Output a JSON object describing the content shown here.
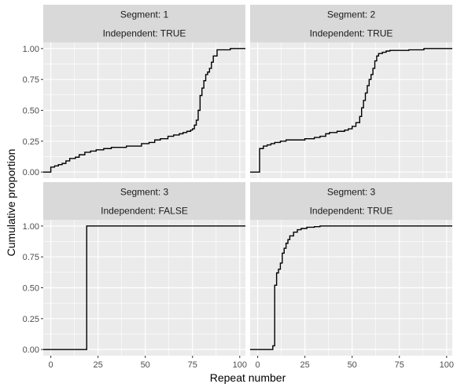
{
  "chart_data": {
    "type": "line",
    "subtype": "step-ecdf-faceted",
    "xlabel": "Repeat number",
    "ylabel": "Cumulative proportion",
    "xlim": [
      -4,
      103
    ],
    "ylim": [
      -0.05,
      1.05
    ],
    "x_ticks": [
      0,
      25,
      50,
      75,
      100
    ],
    "y_ticks": [
      0.0,
      0.25,
      0.5,
      0.75,
      1.0
    ],
    "y_tick_labels": [
      "0.00",
      "0.25",
      "0.50",
      "0.75",
      "1.00"
    ],
    "grid": true,
    "line_color": "#000000",
    "panel_background": "#ebebeb",
    "strip_background": "#d9d9d9",
    "grid_color": "#ffffff",
    "facets": [
      {
        "strip": [
          "Segment: 1",
          "Independent: TRUE"
        ],
        "points": [
          [
            -4,
            0
          ],
          [
            0,
            0
          ],
          [
            0,
            0.04
          ],
          [
            2,
            0.05
          ],
          [
            4,
            0.06
          ],
          [
            6,
            0.07
          ],
          [
            8,
            0.09
          ],
          [
            10,
            0.11
          ],
          [
            13,
            0.12
          ],
          [
            15,
            0.14
          ],
          [
            18,
            0.16
          ],
          [
            21,
            0.17
          ],
          [
            24,
            0.18
          ],
          [
            28,
            0.19
          ],
          [
            32,
            0.2
          ],
          [
            40,
            0.21
          ],
          [
            48,
            0.23
          ],
          [
            52,
            0.24
          ],
          [
            55,
            0.26
          ],
          [
            58,
            0.27
          ],
          [
            62,
            0.29
          ],
          [
            65,
            0.3
          ],
          [
            68,
            0.31
          ],
          [
            70,
            0.32
          ],
          [
            72,
            0.33
          ],
          [
            74,
            0.34
          ],
          [
            75,
            0.35
          ],
          [
            76,
            0.38
          ],
          [
            77,
            0.42
          ],
          [
            78,
            0.5
          ],
          [
            79,
            0.62
          ],
          [
            80,
            0.68
          ],
          [
            81,
            0.74
          ],
          [
            82,
            0.79
          ],
          [
            83,
            0.81
          ],
          [
            84,
            0.84
          ],
          [
            85,
            0.89
          ],
          [
            86,
            0.94
          ],
          [
            88,
            0.99
          ],
          [
            95,
            1.0
          ],
          [
            103,
            1.0
          ]
        ]
      },
      {
        "strip": [
          "Segment: 2",
          "Independent: TRUE"
        ],
        "points": [
          [
            -4,
            0
          ],
          [
            1,
            0
          ],
          [
            1,
            0.19
          ],
          [
            3,
            0.21
          ],
          [
            5,
            0.22
          ],
          [
            7,
            0.23
          ],
          [
            9,
            0.24
          ],
          [
            12,
            0.25
          ],
          [
            15,
            0.26
          ],
          [
            25,
            0.27
          ],
          [
            30,
            0.28
          ],
          [
            33,
            0.29
          ],
          [
            36,
            0.31
          ],
          [
            38,
            0.32
          ],
          [
            42,
            0.33
          ],
          [
            46,
            0.34
          ],
          [
            48,
            0.35
          ],
          [
            50,
            0.37
          ],
          [
            52,
            0.4
          ],
          [
            54,
            0.45
          ],
          [
            55,
            0.52
          ],
          [
            56,
            0.58
          ],
          [
            57,
            0.64
          ],
          [
            58,
            0.7
          ],
          [
            59,
            0.75
          ],
          [
            60,
            0.79
          ],
          [
            61,
            0.84
          ],
          [
            62,
            0.9
          ],
          [
            63,
            0.94
          ],
          [
            64,
            0.96
          ],
          [
            66,
            0.97
          ],
          [
            68,
            0.98
          ],
          [
            70,
            0.985
          ],
          [
            80,
            0.99
          ],
          [
            88,
            1.0
          ],
          [
            103,
            1.0
          ]
        ]
      },
      {
        "strip": [
          "Segment: 3",
          "Independent: FALSE"
        ],
        "points": [
          [
            -4,
            0
          ],
          [
            19,
            0
          ],
          [
            19,
            1.0
          ],
          [
            103,
            1.0
          ]
        ]
      },
      {
        "strip": [
          "Segment: 3",
          "Independent: TRUE"
        ],
        "points": [
          [
            -4,
            0
          ],
          [
            8,
            0
          ],
          [
            8,
            0.03
          ],
          [
            9,
            0.52
          ],
          [
            10,
            0.62
          ],
          [
            11,
            0.65
          ],
          [
            12,
            0.7
          ],
          [
            13,
            0.78
          ],
          [
            14,
            0.82
          ],
          [
            15,
            0.86
          ],
          [
            16,
            0.89
          ],
          [
            17,
            0.92
          ],
          [
            19,
            0.95
          ],
          [
            21,
            0.97
          ],
          [
            23,
            0.98
          ],
          [
            26,
            0.99
          ],
          [
            30,
            0.995
          ],
          [
            33,
            1.0
          ],
          [
            103,
            1.0
          ]
        ]
      }
    ]
  }
}
